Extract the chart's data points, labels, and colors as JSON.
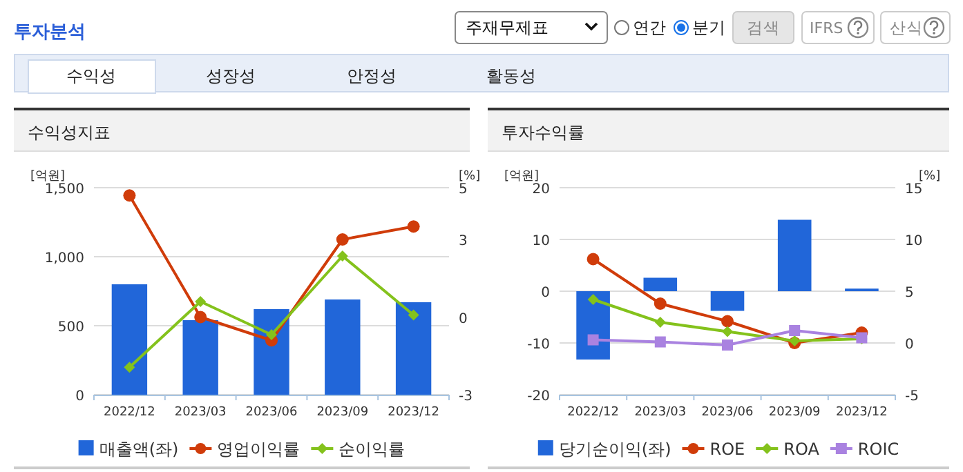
{
  "chart_data": [
    {
      "type": "other",
      "title": "투자분석",
      "annotations": [
        "주재무제표",
        "연간",
        "분기",
        "검색",
        "IFRS",
        "산식",
        "수익성",
        "성장성",
        "안정성",
        "활동성"
      ]
    },
    {
      "type": "bar",
      "title": "수익성지표",
      "ylabel": "[억원]",
      "y2label": "[%]",
      "categories": [
        "2022/12",
        "2023/03",
        "2023/06",
        "2023/09",
        "2023/12"
      ],
      "series": [
        {
          "name": "매출액(좌)",
          "type": "bar",
          "color": "#2166d9",
          "values": [
            800,
            540,
            620,
            690,
            670
          ]
        },
        {
          "name": "영업이익률",
          "type": "line",
          "axis": "y2",
          "marker": "circle",
          "color": "#d03c0a",
          "values": [
            4.7,
            0.0,
            -0.9,
            3.0,
            3.5
          ]
        },
        {
          "name": "순이익률",
          "type": "line",
          "axis": "y2",
          "marker": "diamond",
          "color": "#84c21c",
          "values": [
            -1.94,
            0.6,
            -0.68,
            2.36,
            0.08
          ]
        }
      ],
      "ylim": [
        0,
        1500
      ],
      "yticks": [
        0,
        500,
        {
          "value": 1000,
          "label": "1,000"
        },
        {
          "value": 1500,
          "label": "1,500"
        }
      ],
      "y2lim": [
        -3,
        5
      ],
      "y2ticks": [
        -3,
        0,
        3,
        5
      ],
      "grid": "y",
      "legend": "bottom"
    },
    {
      "type": "bar",
      "title": "투자수익률",
      "ylabel": "[억원]",
      "y2label": "[%]",
      "categories": [
        "2022/12",
        "2023/03",
        "2023/06",
        "2023/09",
        "2023/12"
      ],
      "series": [
        {
          "name": "당기순이익(좌)",
          "type": "bar",
          "color": "#2166d9",
          "values": [
            -13.2,
            2.6,
            -3.8,
            13.8,
            0.5
          ]
        },
        {
          "name": "ROE",
          "type": "line",
          "axis": "y2",
          "marker": "circle",
          "color": "#d03c0a",
          "values": [
            8.1,
            3.8,
            2.1,
            0.0,
            1.0
          ]
        },
        {
          "name": "ROA",
          "type": "line",
          "axis": "y2",
          "marker": "diamond",
          "color": "#84c21c",
          "values": [
            4.2,
            2.0,
            1.1,
            0.2,
            0.4
          ]
        },
        {
          "name": "ROIC",
          "type": "line",
          "axis": "y2",
          "marker": "square",
          "color": "#a982e0",
          "values": [
            0.3,
            0.1,
            -0.2,
            1.2,
            0.5
          ]
        }
      ],
      "ylim": [
        -20,
        20
      ],
      "yticks": [
        -20,
        -10,
        0,
        10,
        20
      ],
      "y2lim": [
        -5,
        15
      ],
      "y2ticks": [
        -5,
        0,
        5,
        10,
        15
      ],
      "grid": "y",
      "legend": "bottom"
    }
  ]
}
